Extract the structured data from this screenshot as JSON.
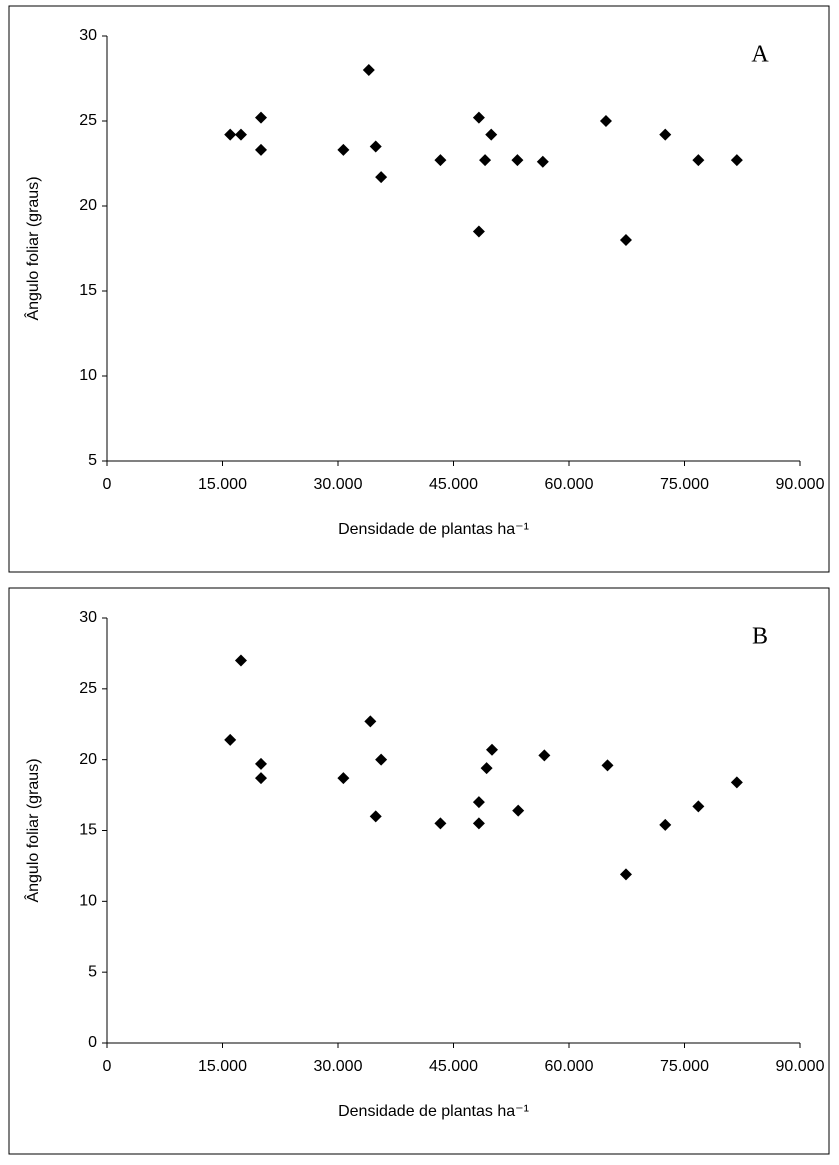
{
  "chart_data": [
    {
      "type": "scatter",
      "title": "A",
      "xlabel": "Densidade de plantas ha⁻¹",
      "ylabel": "Ângulo foliar (graus)",
      "x": [
        16000,
        17400,
        20000,
        20000,
        30700,
        34000,
        34900,
        35600,
        43300,
        48300,
        48300,
        49100,
        49900,
        53300,
        56600,
        64800,
        67400,
        72500,
        76800,
        81800
      ],
      "series": [
        {
          "color": "#000000",
          "values": [
            24.2,
            24.2,
            25.2,
            23.3,
            23.3,
            28.0,
            23.5,
            21.7,
            22.7,
            25.2,
            18.5,
            22.7,
            24.2,
            22.7,
            22.6,
            25.0,
            18.0,
            24.2,
            22.7,
            22.7
          ]
        }
      ],
      "xlim": [
        0,
        90000
      ],
      "ylim": [
        5,
        30
      ],
      "xticks": [
        0,
        {
          "value": 15000,
          "label": "15.000"
        },
        {
          "value": 30000,
          "label": "30.000"
        },
        {
          "value": 45000,
          "label": "45.000"
        },
        {
          "value": 60000,
          "label": "60.000"
        },
        {
          "value": 75000,
          "label": "75.000"
        },
        {
          "value": 90000,
          "label": "90.000"
        }
      ],
      "yticks": [
        5,
        10,
        15,
        20,
        25,
        30
      ]
    },
    {
      "type": "scatter",
      "title": "B",
      "xlabel": "Densidade de plantas ha⁻¹",
      "ylabel": "Ângulo foliar (graus)",
      "x": [
        16000,
        17400,
        20000,
        20000,
        30700,
        34200,
        34900,
        35600,
        43300,
        48300,
        48300,
        49300,
        50000,
        53400,
        56800,
        65000,
        67400,
        72500,
        76800,
        81800
      ],
      "series": [
        {
          "color": "#000000",
          "values": [
            21.4,
            27.0,
            19.7,
            18.7,
            18.7,
            22.7,
            16.0,
            20.0,
            15.5,
            17.0,
            15.5,
            19.4,
            20.7,
            16.4,
            20.3,
            19.6,
            11.9,
            15.4,
            16.7,
            18.4
          ]
        }
      ],
      "xlim": [
        0,
        90000
      ],
      "ylim": [
        0,
        30
      ],
      "xticks": [
        0,
        {
          "value": 15000,
          "label": "15.000"
        },
        {
          "value": 30000,
          "label": "30.000"
        },
        {
          "value": 45000,
          "label": "45.000"
        },
        {
          "value": 60000,
          "label": "60.000"
        },
        {
          "value": 75000,
          "label": "75.000"
        },
        {
          "value": 90000,
          "label": "90.000"
        }
      ],
      "yticks": [
        0,
        5,
        10,
        15,
        20,
        25,
        30
      ]
    }
  ]
}
